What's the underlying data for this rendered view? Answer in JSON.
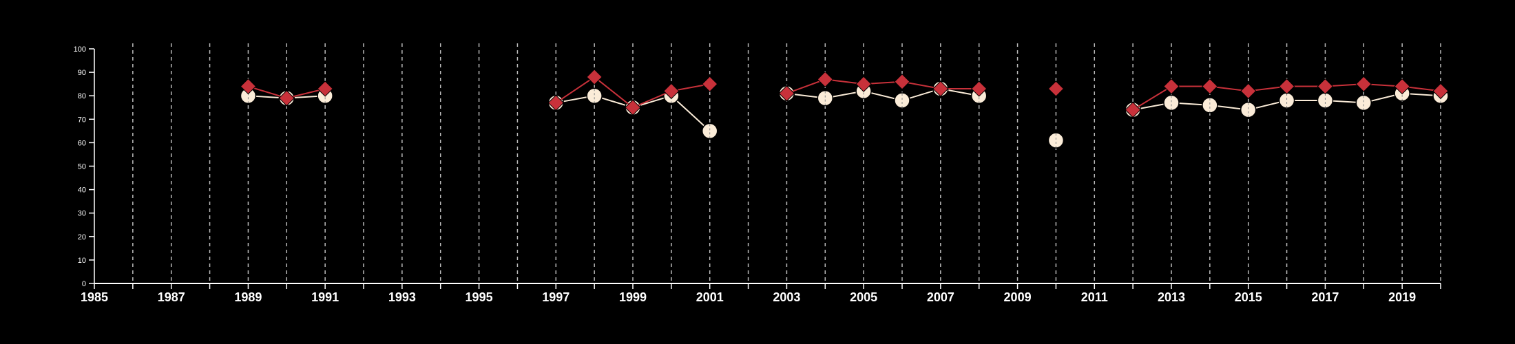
{
  "chart_data": {
    "type": "line",
    "title": "",
    "xlabel": "",
    "ylabel": "",
    "xlim": [
      1985,
      2020
    ],
    "ylim": [
      0,
      100
    ],
    "x_ticks": [
      "1985",
      "1987",
      "1989",
      "1991",
      "1993",
      "1995",
      "1997",
      "1999",
      "2001",
      "2003",
      "2005",
      "2007",
      "2009",
      "2011",
      "2013",
      "2015",
      "2017",
      "2019"
    ],
    "y_ticks": [
      "0",
      "10",
      "20",
      "30",
      "40",
      "50",
      "60",
      "70",
      "80",
      "90",
      "100"
    ],
    "grid": "vertical dashed at each year",
    "colors": {
      "background": "#000000",
      "axis": "#ffffff",
      "grid": "#bbbbbb",
      "series_light": "#fbecd8",
      "series_red": "#c8313a"
    },
    "series": [
      {
        "marker": "circle",
        "color": "#fbecd8",
        "points": [
          [
            1989,
            80
          ],
          [
            1990,
            79
          ],
          [
            1991,
            80
          ],
          [
            1997,
            77
          ],
          [
            1998,
            80
          ],
          [
            1999,
            75
          ],
          [
            2000,
            80
          ],
          [
            2001,
            65
          ],
          [
            2003,
            81
          ],
          [
            2004,
            79
          ],
          [
            2005,
            82
          ],
          [
            2006,
            78
          ],
          [
            2007,
            83
          ],
          [
            2008,
            80
          ],
          [
            2010,
            61
          ],
          [
            2012,
            74
          ],
          [
            2013,
            77
          ],
          [
            2014,
            76
          ],
          [
            2015,
            74
          ],
          [
            2016,
            78
          ],
          [
            2017,
            78
          ],
          [
            2018,
            77
          ],
          [
            2019,
            81
          ],
          [
            2020,
            80
          ]
        ]
      },
      {
        "marker": "diamond",
        "color": "#c8313a",
        "points": [
          [
            1989,
            84
          ],
          [
            1990,
            79
          ],
          [
            1991,
            83
          ],
          [
            1997,
            77
          ],
          [
            1998,
            88
          ],
          [
            1999,
            75
          ],
          [
            2000,
            82
          ],
          [
            2001,
            85
          ],
          [
            2003,
            81
          ],
          [
            2004,
            87
          ],
          [
            2005,
            85
          ],
          [
            2006,
            86
          ],
          [
            2007,
            83
          ],
          [
            2008,
            83
          ],
          [
            2010,
            83
          ],
          [
            2012,
            74
          ],
          [
            2013,
            84
          ],
          [
            2014,
            84
          ],
          [
            2015,
            82
          ],
          [
            2016,
            84
          ],
          [
            2017,
            84
          ],
          [
            2018,
            85
          ],
          [
            2019,
            84
          ],
          [
            2020,
            82
          ]
        ]
      }
    ]
  }
}
